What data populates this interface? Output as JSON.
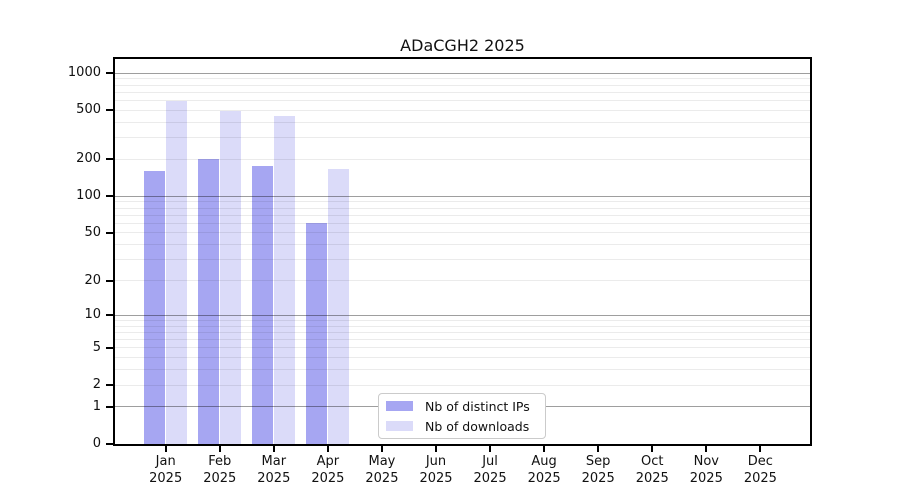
{
  "chart_data": {
    "type": "bar",
    "title": "ADaCGH2 2025",
    "categories": [
      "Jan",
      "Feb",
      "Mar",
      "Apr",
      "May",
      "Jun",
      "Jul",
      "Aug",
      "Sep",
      "Oct",
      "Nov",
      "Dec"
    ],
    "year": "2025",
    "series": [
      {
        "name": "Nb of distinct IPs",
        "color": "#a6a6f2",
        "values": [
          160,
          203,
          176,
          61,
          0,
          0,
          0,
          0,
          0,
          0,
          0,
          0
        ]
      },
      {
        "name": "Nb of downloads",
        "color": "#dbdbf9",
        "values": [
          593,
          490,
          450,
          168,
          0,
          0,
          0,
          0,
          0,
          0,
          0,
          0
        ]
      }
    ],
    "y_axis": {
      "scale": "log10(1+x)",
      "range": [
        0,
        1000
      ],
      "tick_labels": [
        "1000",
        "500",
        "200",
        "100",
        "50",
        "20",
        "10",
        "5",
        "2",
        "1",
        "0"
      ],
      "tick_values": [
        1000,
        500,
        200,
        100,
        50,
        20,
        10,
        5,
        2,
        1,
        0
      ]
    },
    "grid": {
      "major_values": [
        1,
        10,
        100,
        1000
      ],
      "minor_values": [
        2,
        3,
        4,
        5,
        6,
        7,
        8,
        9,
        20,
        30,
        40,
        50,
        60,
        70,
        80,
        90,
        200,
        300,
        400,
        500,
        600,
        700,
        800,
        900
      ],
      "major_color": "#9e9e9e",
      "minor_color": "#ebebeb"
    },
    "legend": {
      "position": "inside-bottom-center"
    }
  }
}
